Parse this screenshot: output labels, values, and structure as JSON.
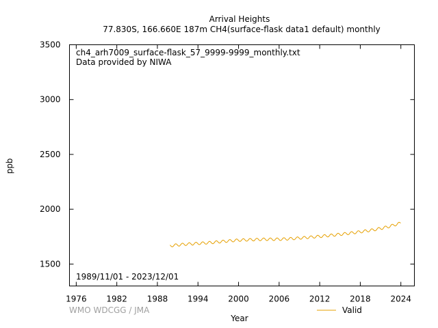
{
  "chart_data": {
    "type": "line",
    "title": "Arrival Heights",
    "subtitle": "77.830S, 166.660E 187m    CH4(surface-flask data1 default) monthly",
    "file_label": "ch4_arh7009_surface-flask_57_9999-9999_monthly.txt",
    "provider_label": "Data provided by NIWA",
    "date_range_label": "1989/11/01 - 2023/12/01",
    "credit": "WMO WDCGG / JMA",
    "xlabel": "Year",
    "ylabel": "ppb",
    "xlim": [
      1975,
      2026
    ],
    "ylim": [
      1300,
      3500
    ],
    "x_ticks": [
      "1976",
      "1982",
      "1988",
      "1994",
      "2000",
      "2006",
      "2012",
      "2018",
      "2024"
    ],
    "y_ticks": [
      "1500",
      "2000",
      "2500",
      "3000",
      "3500"
    ],
    "legend_position": "bottom-right",
    "grid": false,
    "series": [
      {
        "name": "Valid",
        "color": "#e6a000",
        "x_start": "1989-11",
        "x_end": "2023-12",
        "annual_means": [
          [
            1990,
            1668
          ],
          [
            1992,
            1680
          ],
          [
            1994,
            1688
          ],
          [
            1996,
            1696
          ],
          [
            1998,
            1708
          ],
          [
            2000,
            1718
          ],
          [
            2002,
            1722
          ],
          [
            2004,
            1726
          ],
          [
            2006,
            1726
          ],
          [
            2008,
            1732
          ],
          [
            2010,
            1742
          ],
          [
            2012,
            1752
          ],
          [
            2014,
            1764
          ],
          [
            2016,
            1778
          ],
          [
            2018,
            1794
          ],
          [
            2020,
            1812
          ],
          [
            2022,
            1838
          ],
          [
            2023.9,
            1872
          ]
        ],
        "seasonal_amplitude_ppb": 12
      }
    ]
  }
}
